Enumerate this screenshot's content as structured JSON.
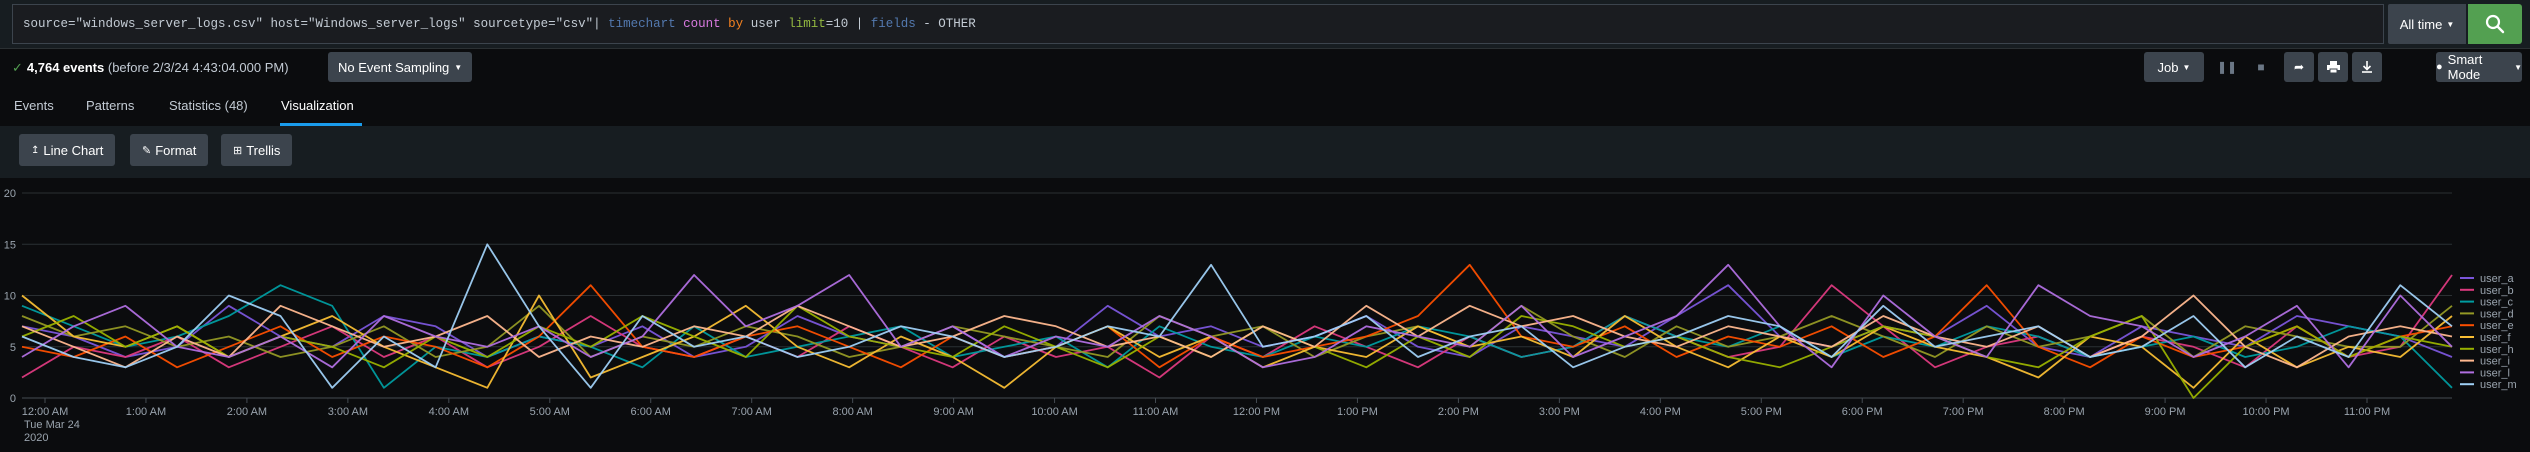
{
  "search": {
    "query_parts": [
      {
        "text": "source=\"windows_server_logs.csv\" host=\"Windows_server_logs\" sourcetype=\"csv\"| ",
        "role": "plain"
      },
      {
        "text": "timechart",
        "role": "cmd"
      },
      {
        "text": " ",
        "role": "plain"
      },
      {
        "text": "count",
        "role": "fn"
      },
      {
        "text": " ",
        "role": "plain"
      },
      {
        "text": "by",
        "role": "kw"
      },
      {
        "text": " user ",
        "role": "plain"
      },
      {
        "text": "limit",
        "role": "arg"
      },
      {
        "text": "=10 | ",
        "role": "plain"
      },
      {
        "text": "fields",
        "role": "cmd"
      },
      {
        "text": " - OTHER",
        "role": "plain"
      }
    ],
    "time_range": "All time",
    "search_icon": "search-icon"
  },
  "status": {
    "event_count": "4,764 events",
    "before": "(before 2/3/24 4:43:04.000 PM)",
    "sampling": "No Event Sampling",
    "job": "Job",
    "mode": "Smart Mode"
  },
  "tabs": [
    {
      "label": "Events"
    },
    {
      "label": "Patterns"
    },
    {
      "label": "Statistics (48)"
    },
    {
      "label": "Visualization"
    }
  ],
  "viz_toolbar": {
    "line_chart": "Line Chart",
    "format": "Format",
    "trellis": "Trellis"
  },
  "colors": {
    "accent": "#1a9cec",
    "search_green": "#53a051",
    "button": "#3c444d"
  },
  "chart_data": {
    "type": "line",
    "xlabel": "",
    "ylabel": "",
    "ylim": [
      0,
      20
    ],
    "yticks": [
      0,
      5,
      10,
      15,
      20
    ],
    "grid": true,
    "legend_position": "right",
    "x_tick_labels": [
      "12:00 AM",
      "1:00 AM",
      "2:00 AM",
      "3:00 AM",
      "4:00 AM",
      "5:00 AM",
      "6:00 AM",
      "7:00 AM",
      "8:00 AM",
      "9:00 AM",
      "10:00 AM",
      "11:00 AM",
      "12:00 PM",
      "1:00 PM",
      "2:00 PM",
      "3:00 PM",
      "4:00 PM",
      "5:00 PM",
      "6:00 PM",
      "7:00 PM",
      "8:00 PM",
      "9:00 PM",
      "10:00 PM",
      "11:00 PM"
    ],
    "x_date_label_1": "Tue Mar 24",
    "x_date_label_2": "2020",
    "points_per_hour": 2,
    "series": [
      {
        "name": "user_a",
        "color": "#7b56db",
        "values": [
          7,
          6,
          4,
          5,
          9,
          6,
          5,
          8,
          7,
          4,
          6,
          5,
          7,
          4,
          5,
          8,
          6,
          5,
          7,
          4,
          5,
          9,
          6,
          7,
          5,
          6,
          8,
          5,
          4,
          7,
          6,
          5,
          8,
          11,
          6,
          5,
          7,
          6,
          9,
          5,
          4,
          7,
          6,
          5,
          8,
          7,
          6,
          4
        ]
      },
      {
        "name": "user_b",
        "color": "#dd3a7f",
        "values": [
          2,
          5,
          4,
          6,
          3,
          5,
          7,
          4,
          6,
          3,
          5,
          8,
          5,
          4,
          6,
          4,
          7,
          5,
          3,
          6,
          4,
          5,
          2,
          6,
          4,
          7,
          5,
          3,
          6,
          4,
          5,
          8,
          6,
          4,
          5,
          11,
          7,
          3,
          5,
          6,
          4,
          6,
          5,
          3,
          7,
          4,
          5,
          12
        ]
      },
      {
        "name": "user_c",
        "color": "#009ca0",
        "values": [
          9,
          7,
          5,
          6,
          8,
          11,
          9,
          1,
          5,
          4,
          6,
          5,
          3,
          7,
          4,
          5,
          6,
          7,
          4,
          5,
          6,
          3,
          7,
          5,
          4,
          6,
          5,
          7,
          6,
          4,
          5,
          8,
          6,
          5,
          7,
          4,
          6,
          5,
          7,
          6,
          4,
          5,
          6,
          4,
          5,
          7,
          6,
          1
        ]
      },
      {
        "name": "user_d",
        "color": "#949925",
        "values": [
          8,
          6,
          7,
          5,
          6,
          4,
          5,
          7,
          4,
          5,
          9,
          4,
          6,
          5,
          7,
          6,
          4,
          5,
          7,
          6,
          5,
          4,
          8,
          6,
          7,
          4,
          6,
          7,
          5,
          9,
          6,
          4,
          7,
          5,
          6,
          8,
          6,
          4,
          7,
          5,
          6,
          8,
          4,
          7,
          6,
          5,
          5,
          9
        ]
      },
      {
        "name": "user_e",
        "color": "#fc4f00",
        "values": [
          5,
          4,
          6,
          3,
          5,
          7,
          4,
          6,
          5,
          3,
          6,
          11,
          5,
          4,
          6,
          7,
          5,
          3,
          6,
          4,
          5,
          7,
          3,
          6,
          4,
          5,
          6,
          8,
          13,
          6,
          5,
          7,
          4,
          6,
          5,
          7,
          4,
          6,
          11,
          5,
          3,
          6,
          4,
          5,
          7,
          4,
          6,
          7
        ]
      },
      {
        "name": "user_f",
        "color": "#f8be34",
        "values": [
          10,
          6,
          5,
          7,
          4,
          6,
          8,
          5,
          3,
          1,
          10,
          2,
          4,
          6,
          9,
          5,
          3,
          6,
          4,
          1,
          5,
          7,
          4,
          6,
          3,
          5,
          4,
          7,
          5,
          6,
          4,
          8,
          5,
          3,
          6,
          4,
          7,
          5,
          4,
          2,
          6,
          5,
          1,
          6,
          3,
          5,
          4,
          8
        ]
      },
      {
        "name": "user_h",
        "color": "#99b100",
        "values": [
          6,
          8,
          5,
          7,
          4,
          6,
          5,
          3,
          6,
          4,
          7,
          5,
          8,
          6,
          4,
          9,
          6,
          5,
          4,
          7,
          5,
          3,
          6,
          4,
          7,
          5,
          3,
          6,
          4,
          8,
          7,
          5,
          6,
          4,
          3,
          5,
          7,
          6,
          4,
          3,
          6,
          8,
          0,
          5,
          7,
          4,
          6,
          5
        ]
      },
      {
        "name": "user_i",
        "color": "#ffb88f",
        "values": [
          7,
          5,
          3,
          6,
          4,
          9,
          7,
          5,
          6,
          8,
          4,
          6,
          5,
          7,
          6,
          9,
          7,
          5,
          6,
          8,
          7,
          5,
          6,
          4,
          7,
          5,
          9,
          6,
          9,
          7,
          8,
          6,
          5,
          7,
          6,
          5,
          8,
          6,
          5,
          7,
          4,
          6,
          10,
          5,
          3,
          6,
          7,
          6
        ]
      },
      {
        "name": "user_l",
        "color": "#b06fe0",
        "values": [
          4,
          7,
          9,
          5,
          4,
          6,
          3,
          8,
          6,
          5,
          7,
          4,
          6,
          12,
          7,
          9,
          12,
          5,
          7,
          4,
          6,
          5,
          8,
          6,
          3,
          4,
          7,
          6,
          5,
          9,
          4,
          6,
          8,
          13,
          7,
          3,
          10,
          6,
          4,
          11,
          8,
          7,
          4,
          6,
          9,
          3,
          10,
          5
        ]
      },
      {
        "name": "user_m",
        "color": "#9fd0f5",
        "values": [
          6,
          4,
          3,
          5,
          10,
          8,
          1,
          6,
          3,
          15,
          7,
          1,
          8,
          5,
          6,
          4,
          5,
          7,
          6,
          4,
          5,
          7,
          6,
          13,
          5,
          6,
          8,
          4,
          6,
          7,
          3,
          5,
          6,
          8,
          7,
          4,
          9,
          5,
          6,
          7,
          4,
          5,
          8,
          3,
          6,
          4,
          11,
          7
        ]
      }
    ]
  }
}
